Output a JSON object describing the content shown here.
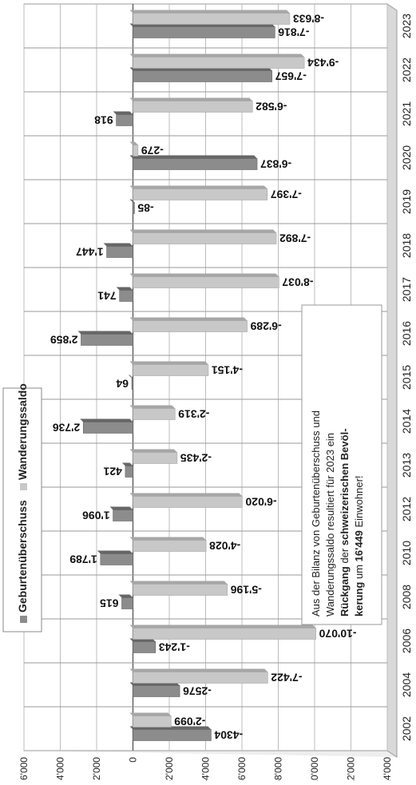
{
  "chart_data": {
    "type": "bar",
    "orientation": "horizontal-bars, figure rotated 180 degrees",
    "categories": [
      "2002",
      "2004",
      "2006",
      "2008",
      "2010",
      "2012",
      "2013",
      "2014",
      "2015",
      "2016",
      "2017",
      "2018",
      "2019",
      "2020",
      "2021",
      "2022",
      "2023"
    ],
    "series": [
      {
        "name": "Geburtenüberschuss",
        "color": "#8c8c8c",
        "values": [
          -4304,
          -2576,
          -1243,
          615,
          1789,
          1096,
          421,
          2736,
          64,
          2859,
          741,
          1447,
          -85,
          -6837,
          918,
          -7657,
          -7816
        ],
        "labels": [
          "-4304",
          "-2576",
          "-1'243",
          "615",
          "1'789",
          "1'096",
          "421",
          "2'736",
          "64",
          "2'859",
          "741",
          "1'447",
          "-85",
          "-6'837",
          "918",
          "-7'657",
          "-7'816"
        ]
      },
      {
        "name": "Wanderungssaldo",
        "color": "#c8c8c8",
        "values": [
          -2099,
          -7422,
          -10070,
          -5196,
          -4028,
          -6020,
          -2435,
          -2319,
          -4151,
          -6289,
          -8037,
          -7892,
          -7397,
          -279,
          -6582,
          -9434,
          -8633
        ],
        "labels": [
          "-2'099",
          "-7'422",
          "-10'070",
          "-5'196",
          "-4'028",
          "-6'020",
          "-2'435",
          "-2'319",
          "-4'151",
          "-6'289",
          "-8'037",
          "-7'892",
          "-7'397",
          "-279",
          "-6'582",
          "-9'434",
          "-8'633"
        ]
      }
    ],
    "value_axis": {
      "min": -14000,
      "max": 6000,
      "step": 2000,
      "tick_labels": [
        "6'000",
        "4'000",
        "2'000",
        "0",
        "-2'000",
        "-4'000",
        "-6'000",
        "-8'000",
        "-10'000",
        "-12'000",
        "-14'000"
      ]
    },
    "grid": true,
    "legend_position": "left",
    "annotation": {
      "line1": "Aus der Bilanz von Geburtenüberschuss und",
      "line2": "Wanderungssaldo resultiert für 2023 ein",
      "line3_bold1": "Rückgang",
      "line3_mid": " der ",
      "line3_bold2": "schweizerischen Bevöl-",
      "line4_bold1": "kerung",
      "line4_mid": " um ",
      "line4_bold2": "16'449",
      "line4_end": " Einwohner!"
    }
  }
}
